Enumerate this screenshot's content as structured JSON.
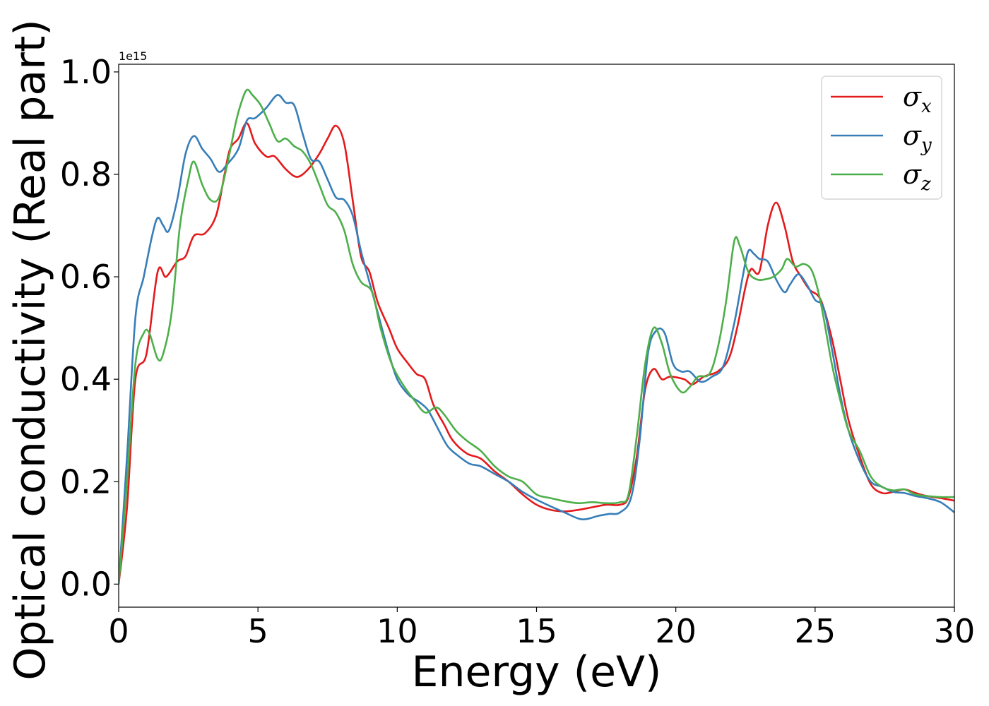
{
  "chart_data": {
    "type": "line",
    "xlabel": "Energy (eV)",
    "ylabel": "Optical conductivity (Real part)",
    "y_offset_label": "1e15",
    "xlim": [
      0,
      30
    ],
    "ylim": [
      -0.045,
      1.015
    ],
    "x_ticks": [
      0,
      5,
      10,
      15,
      20,
      25,
      30
    ],
    "x_tick_labels": [
      "0",
      "5",
      "10",
      "15",
      "20",
      "25",
      "30"
    ],
    "y_ticks": [
      0.0,
      0.2,
      0.4,
      0.6,
      0.8,
      1.0
    ],
    "y_tick_labels": [
      "0.0",
      "0.2",
      "0.4",
      "0.6",
      "0.8",
      "1.0"
    ],
    "grid": false,
    "legend_position": "top-right",
    "series": [
      {
        "name": "σx",
        "legend_symbol": "σ",
        "legend_sub": "x",
        "color": "#e41a1c",
        "points": [
          [
            0,
            0
          ],
          [
            0.3,
            0.15
          ],
          [
            0.6,
            0.4
          ],
          [
            1.0,
            0.45
          ],
          [
            1.4,
            0.61
          ],
          [
            1.7,
            0.6
          ],
          [
            2.1,
            0.63
          ],
          [
            2.4,
            0.64
          ],
          [
            2.7,
            0.68
          ],
          [
            3.1,
            0.685
          ],
          [
            3.5,
            0.72
          ],
          [
            3.8,
            0.8
          ],
          [
            4.0,
            0.85
          ],
          [
            4.3,
            0.87
          ],
          [
            4.6,
            0.9
          ],
          [
            4.9,
            0.86
          ],
          [
            5.3,
            0.835
          ],
          [
            5.6,
            0.835
          ],
          [
            6.0,
            0.81
          ],
          [
            6.4,
            0.795
          ],
          [
            6.8,
            0.81
          ],
          [
            7.2,
            0.84
          ],
          [
            7.5,
            0.87
          ],
          [
            7.8,
            0.895
          ],
          [
            8.1,
            0.86
          ],
          [
            8.4,
            0.75
          ],
          [
            8.7,
            0.64
          ],
          [
            9.0,
            0.61
          ],
          [
            9.3,
            0.55
          ],
          [
            9.7,
            0.5
          ],
          [
            10.0,
            0.46
          ],
          [
            10.4,
            0.43
          ],
          [
            10.7,
            0.41
          ],
          [
            11.0,
            0.4
          ],
          [
            11.3,
            0.35
          ],
          [
            11.7,
            0.31
          ],
          [
            12.0,
            0.28
          ],
          [
            12.5,
            0.255
          ],
          [
            13.0,
            0.245
          ],
          [
            13.5,
            0.22
          ],
          [
            14.0,
            0.2
          ],
          [
            14.5,
            0.175
          ],
          [
            15.0,
            0.155
          ],
          [
            15.5,
            0.145
          ],
          [
            16.0,
            0.142
          ],
          [
            16.5,
            0.145
          ],
          [
            17.0,
            0.15
          ],
          [
            17.5,
            0.155
          ],
          [
            18.0,
            0.155
          ],
          [
            18.3,
            0.17
          ],
          [
            18.6,
            0.25
          ],
          [
            18.9,
            0.38
          ],
          [
            19.2,
            0.42
          ],
          [
            19.5,
            0.4
          ],
          [
            19.8,
            0.405
          ],
          [
            20.3,
            0.4
          ],
          [
            20.6,
            0.39
          ],
          [
            21.0,
            0.405
          ],
          [
            21.5,
            0.415
          ],
          [
            21.9,
            0.44
          ],
          [
            22.2,
            0.5
          ],
          [
            22.5,
            0.58
          ],
          [
            22.7,
            0.615
          ],
          [
            23.0,
            0.61
          ],
          [
            23.3,
            0.7
          ],
          [
            23.6,
            0.745
          ],
          [
            23.9,
            0.7
          ],
          [
            24.2,
            0.63
          ],
          [
            24.5,
            0.6
          ],
          [
            24.8,
            0.575
          ],
          [
            25.2,
            0.555
          ],
          [
            25.6,
            0.48
          ],
          [
            25.9,
            0.4
          ],
          [
            26.2,
            0.32
          ],
          [
            26.6,
            0.25
          ],
          [
            27.0,
            0.195
          ],
          [
            27.4,
            0.178
          ],
          [
            27.8,
            0.18
          ],
          [
            28.2,
            0.185
          ],
          [
            28.6,
            0.178
          ],
          [
            29.0,
            0.172
          ],
          [
            29.5,
            0.168
          ],
          [
            30.0,
            0.163
          ]
        ]
      },
      {
        "name": "σy",
        "legend_symbol": "σ",
        "legend_sub": "y",
        "color": "#377eb8",
        "points": [
          [
            0,
            0
          ],
          [
            0.3,
            0.25
          ],
          [
            0.6,
            0.52
          ],
          [
            0.9,
            0.6
          ],
          [
            1.2,
            0.68
          ],
          [
            1.4,
            0.715
          ],
          [
            1.6,
            0.7
          ],
          [
            1.8,
            0.69
          ],
          [
            2.1,
            0.75
          ],
          [
            2.4,
            0.84
          ],
          [
            2.7,
            0.875
          ],
          [
            3.0,
            0.85
          ],
          [
            3.3,
            0.83
          ],
          [
            3.6,
            0.805
          ],
          [
            3.9,
            0.82
          ],
          [
            4.3,
            0.85
          ],
          [
            4.6,
            0.905
          ],
          [
            4.9,
            0.91
          ],
          [
            5.3,
            0.93
          ],
          [
            5.7,
            0.955
          ],
          [
            6.0,
            0.94
          ],
          [
            6.3,
            0.935
          ],
          [
            6.6,
            0.88
          ],
          [
            6.9,
            0.83
          ],
          [
            7.2,
            0.825
          ],
          [
            7.5,
            0.79
          ],
          [
            7.8,
            0.755
          ],
          [
            8.1,
            0.75
          ],
          [
            8.4,
            0.72
          ],
          [
            8.7,
            0.65
          ],
          [
            9.0,
            0.59
          ],
          [
            9.3,
            0.53
          ],
          [
            9.7,
            0.45
          ],
          [
            10.0,
            0.4
          ],
          [
            10.4,
            0.37
          ],
          [
            10.8,
            0.355
          ],
          [
            11.1,
            0.34
          ],
          [
            11.4,
            0.31
          ],
          [
            11.8,
            0.27
          ],
          [
            12.2,
            0.25
          ],
          [
            12.6,
            0.235
          ],
          [
            13.0,
            0.23
          ],
          [
            13.5,
            0.215
          ],
          [
            14.0,
            0.2
          ],
          [
            14.5,
            0.18
          ],
          [
            15.0,
            0.165
          ],
          [
            15.5,
            0.152
          ],
          [
            16.0,
            0.14
          ],
          [
            16.5,
            0.128
          ],
          [
            16.8,
            0.127
          ],
          [
            17.2,
            0.133
          ],
          [
            17.6,
            0.137
          ],
          [
            18.0,
            0.14
          ],
          [
            18.4,
            0.17
          ],
          [
            18.7,
            0.28
          ],
          [
            19.0,
            0.45
          ],
          [
            19.3,
            0.495
          ],
          [
            19.6,
            0.49
          ],
          [
            19.9,
            0.43
          ],
          [
            20.2,
            0.415
          ],
          [
            20.5,
            0.415
          ],
          [
            20.9,
            0.395
          ],
          [
            21.3,
            0.405
          ],
          [
            21.7,
            0.425
          ],
          [
            22.1,
            0.51
          ],
          [
            22.4,
            0.6
          ],
          [
            22.6,
            0.65
          ],
          [
            22.8,
            0.645
          ],
          [
            23.0,
            0.635
          ],
          [
            23.3,
            0.63
          ],
          [
            23.6,
            0.595
          ],
          [
            23.9,
            0.57
          ],
          [
            24.1,
            0.585
          ],
          [
            24.4,
            0.605
          ],
          [
            24.7,
            0.585
          ],
          [
            25.0,
            0.555
          ],
          [
            25.3,
            0.54
          ],
          [
            25.6,
            0.46
          ],
          [
            25.9,
            0.37
          ],
          [
            26.2,
            0.3
          ],
          [
            26.6,
            0.24
          ],
          [
            27.0,
            0.2
          ],
          [
            27.4,
            0.19
          ],
          [
            27.8,
            0.18
          ],
          [
            28.2,
            0.178
          ],
          [
            28.6,
            0.172
          ],
          [
            29.0,
            0.168
          ],
          [
            29.5,
            0.16
          ],
          [
            30.0,
            0.14
          ]
        ]
      },
      {
        "name": "σz",
        "legend_symbol": "σ",
        "legend_sub": "z",
        "color": "#4daf4a",
        "points": [
          [
            0,
            0
          ],
          [
            0.3,
            0.2
          ],
          [
            0.6,
            0.43
          ],
          [
            0.9,
            0.49
          ],
          [
            1.1,
            0.49
          ],
          [
            1.4,
            0.44
          ],
          [
            1.6,
            0.45
          ],
          [
            1.9,
            0.53
          ],
          [
            2.2,
            0.7
          ],
          [
            2.5,
            0.79
          ],
          [
            2.7,
            0.825
          ],
          [
            3.0,
            0.78
          ],
          [
            3.3,
            0.75
          ],
          [
            3.6,
            0.755
          ],
          [
            3.9,
            0.82
          ],
          [
            4.2,
            0.9
          ],
          [
            4.4,
            0.94
          ],
          [
            4.6,
            0.965
          ],
          [
            4.8,
            0.955
          ],
          [
            5.1,
            0.935
          ],
          [
            5.4,
            0.9
          ],
          [
            5.7,
            0.865
          ],
          [
            6.0,
            0.87
          ],
          [
            6.3,
            0.855
          ],
          [
            6.6,
            0.845
          ],
          [
            6.9,
            0.82
          ],
          [
            7.2,
            0.78
          ],
          [
            7.5,
            0.74
          ],
          [
            7.8,
            0.725
          ],
          [
            8.1,
            0.69
          ],
          [
            8.4,
            0.625
          ],
          [
            8.7,
            0.59
          ],
          [
            9.1,
            0.57
          ],
          [
            9.4,
            0.5
          ],
          [
            9.8,
            0.43
          ],
          [
            10.2,
            0.39
          ],
          [
            10.6,
            0.36
          ],
          [
            11.0,
            0.335
          ],
          [
            11.4,
            0.345
          ],
          [
            11.7,
            0.33
          ],
          [
            12.1,
            0.3
          ],
          [
            12.5,
            0.28
          ],
          [
            13.0,
            0.26
          ],
          [
            13.5,
            0.23
          ],
          [
            14.0,
            0.21
          ],
          [
            14.5,
            0.2
          ],
          [
            15.0,
            0.175
          ],
          [
            15.5,
            0.168
          ],
          [
            16.0,
            0.162
          ],
          [
            16.5,
            0.158
          ],
          [
            17.0,
            0.16
          ],
          [
            17.5,
            0.158
          ],
          [
            18.0,
            0.16
          ],
          [
            18.3,
            0.175
          ],
          [
            18.6,
            0.29
          ],
          [
            18.9,
            0.43
          ],
          [
            19.2,
            0.5
          ],
          [
            19.5,
            0.47
          ],
          [
            19.8,
            0.41
          ],
          [
            20.2,
            0.375
          ],
          [
            20.5,
            0.385
          ],
          [
            20.8,
            0.405
          ],
          [
            21.2,
            0.41
          ],
          [
            21.5,
            0.46
          ],
          [
            21.8,
            0.55
          ],
          [
            22.1,
            0.67
          ],
          [
            22.3,
            0.66
          ],
          [
            22.6,
            0.61
          ],
          [
            22.9,
            0.595
          ],
          [
            23.2,
            0.595
          ],
          [
            23.5,
            0.6
          ],
          [
            23.8,
            0.615
          ],
          [
            24.0,
            0.635
          ],
          [
            24.3,
            0.62
          ],
          [
            24.6,
            0.625
          ],
          [
            24.9,
            0.61
          ],
          [
            25.2,
            0.55
          ],
          [
            25.6,
            0.43
          ],
          [
            25.9,
            0.36
          ],
          [
            26.2,
            0.3
          ],
          [
            26.6,
            0.26
          ],
          [
            27.0,
            0.21
          ],
          [
            27.4,
            0.19
          ],
          [
            27.8,
            0.183
          ],
          [
            28.2,
            0.185
          ],
          [
            28.6,
            0.175
          ],
          [
            29.0,
            0.172
          ],
          [
            29.5,
            0.17
          ],
          [
            30.0,
            0.17
          ]
        ]
      }
    ]
  }
}
